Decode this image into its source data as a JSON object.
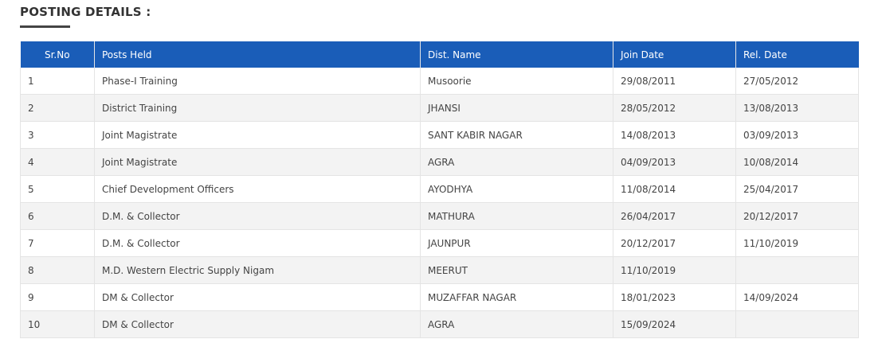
{
  "header": {
    "title": "POSTING DETAILS :"
  },
  "table": {
    "headers": [
      "Sr.No",
      "Posts Held",
      "Dist. Name",
      "Join Date",
      "Rel. Date"
    ],
    "rows": [
      [
        "1",
        "Phase-I Training",
        "Musoorie",
        "29/08/2011",
        "27/05/2012"
      ],
      [
        "2",
        "District Training",
        "JHANSI",
        "28/05/2012",
        "13/08/2013"
      ],
      [
        "3",
        "Joint Magistrate",
        "SANT KABIR NAGAR",
        "14/08/2013",
        "03/09/2013"
      ],
      [
        "4",
        "Joint Magistrate",
        "AGRA",
        "04/09/2013",
        "10/08/2014"
      ],
      [
        "5",
        "Chief Development Officers",
        "AYODHYA",
        "11/08/2014",
        "25/04/2017"
      ],
      [
        "6",
        "D.M. & Collector",
        "MATHURA",
        "26/04/2017",
        "20/12/2017"
      ],
      [
        "7",
        "D.M. & Collector",
        "JAUNPUR",
        "20/12/2017",
        "11/10/2019"
      ],
      [
        "8",
        "M.D. Western Electric Supply Nigam",
        "MEERUT",
        "11/10/2019",
        null
      ],
      [
        "9",
        "DM & Collector",
        "MUZAFFAR NAGAR",
        "18/01/2023",
        "14/09/2024"
      ],
      [
        "10",
        "DM & Collector",
        "AGRA",
        "15/09/2024",
        null
      ]
    ]
  }
}
